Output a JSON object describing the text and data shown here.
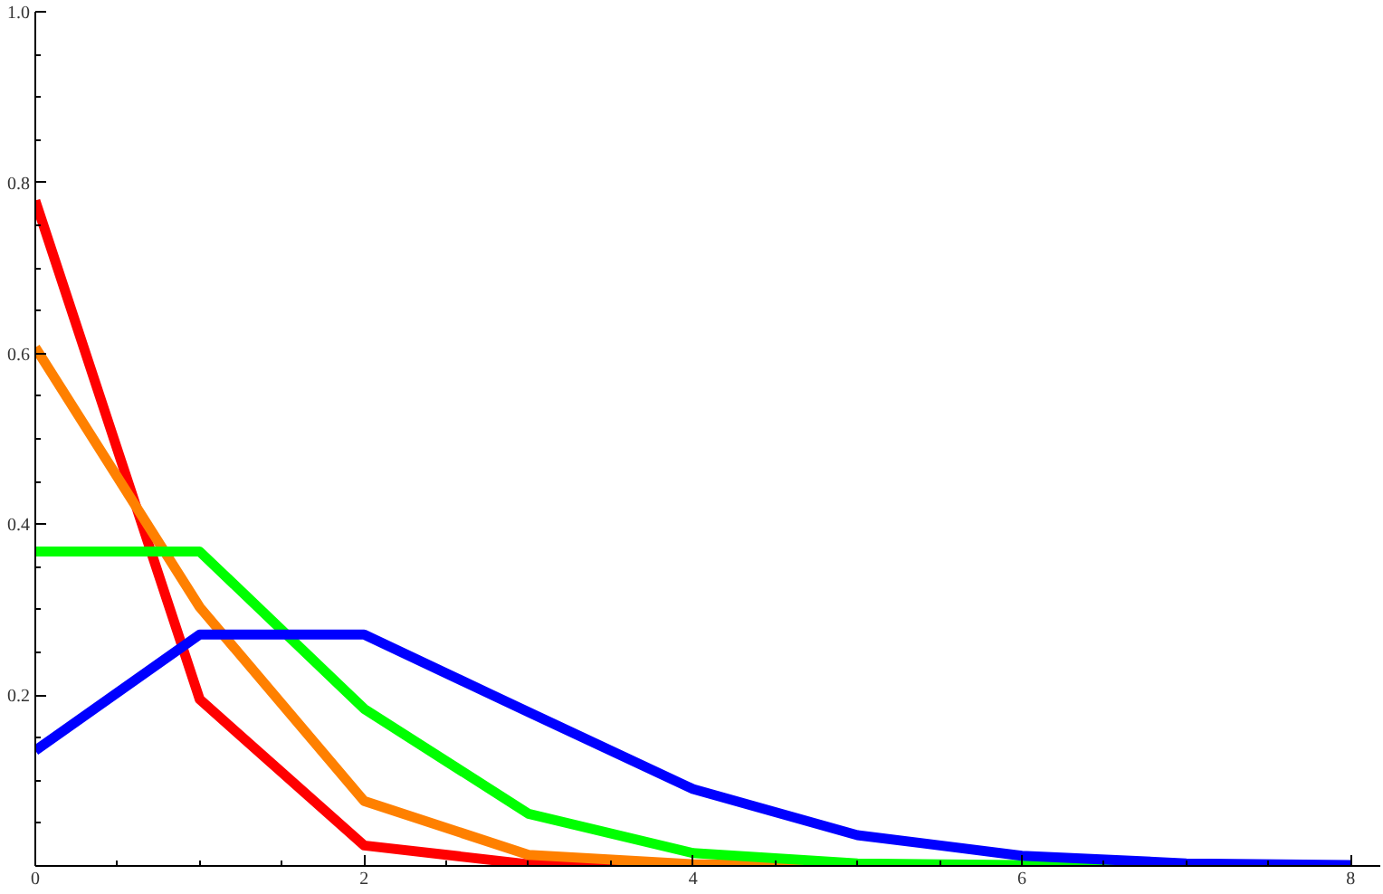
{
  "chart_data": {
    "type": "line",
    "x": [
      0,
      1,
      2,
      3,
      4,
      5,
      6,
      7,
      8
    ],
    "series": [
      {
        "color": "#ff0000",
        "values": [
          0.779,
          0.195,
          0.024,
          0.002,
          0.0,
          null,
          null,
          null,
          null
        ]
      },
      {
        "color": "#ff8000",
        "values": [
          0.607,
          0.303,
          0.076,
          0.013,
          0.002,
          0.0,
          null,
          null,
          null
        ]
      },
      {
        "color": "#00ff00",
        "values": [
          0.368,
          0.368,
          0.184,
          0.061,
          0.015,
          0.003,
          0.001,
          0.0,
          null
        ]
      },
      {
        "color": "#0000ff",
        "values": [
          0.135,
          0.271,
          0.271,
          0.18,
          0.09,
          0.036,
          0.012,
          0.003,
          0.001
        ]
      }
    ],
    "xlim": [
      0,
      8.18
    ],
    "ylim": [
      0,
      1.0
    ],
    "xticks": [
      0,
      {
        "value": 0.5,
        "label": null
      },
      {
        "value": 1,
        "label": null
      },
      {
        "value": 1.5,
        "label": null
      },
      2,
      {
        "value": 2.5,
        "label": null
      },
      {
        "value": 3,
        "label": null
      },
      {
        "value": 3.5,
        "label": null
      },
      4,
      {
        "value": 4.5,
        "label": null
      },
      {
        "value": 5,
        "label": null
      },
      {
        "value": 5.5,
        "label": null
      },
      6,
      {
        "value": 6.5,
        "label": null
      },
      {
        "value": 7,
        "label": null
      },
      {
        "value": 7.5,
        "label": null
      },
      8
    ],
    "yticks": [
      {
        "value": 0.05,
        "label": null
      },
      {
        "value": 0.1,
        "label": null
      },
      {
        "value": 0.15,
        "label": null
      },
      0.2,
      {
        "value": 0.25,
        "label": null
      },
      {
        "value": 0.3,
        "label": null
      },
      {
        "value": 0.35,
        "label": null
      },
      0.4,
      {
        "value": 0.45,
        "label": null
      },
      {
        "value": 0.5,
        "label": null
      },
      {
        "value": 0.55,
        "label": null
      },
      0.6,
      {
        "value": 0.65,
        "label": null
      },
      {
        "value": 0.7,
        "label": null
      },
      {
        "value": 0.75,
        "label": null
      },
      0.8,
      {
        "value": 0.85,
        "label": null
      },
      {
        "value": 0.9,
        "label": null
      },
      {
        "value": 0.95,
        "label": null
      },
      {
        "value": 1,
        "label": "1.0"
      }
    ],
    "grid": false
  }
}
